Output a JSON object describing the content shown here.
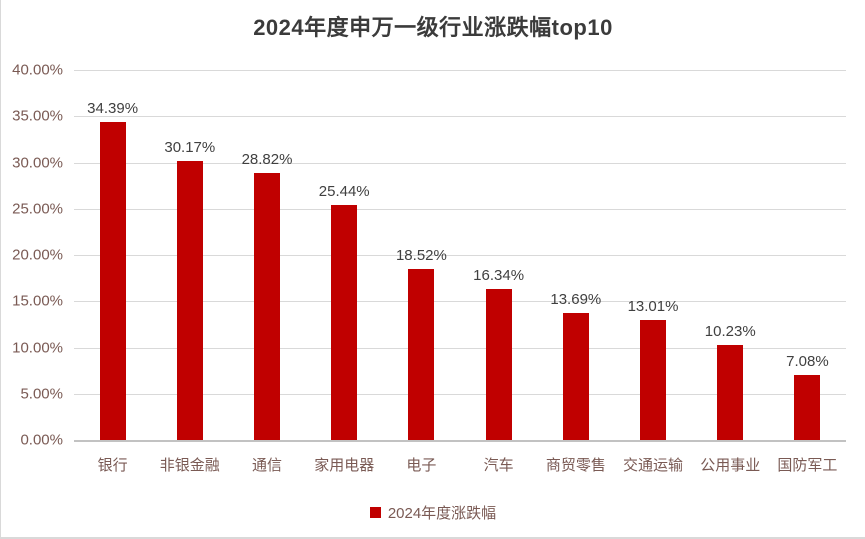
{
  "chart_data": {
    "type": "bar",
    "title": "2024年度申万一级行业涨跌幅top10",
    "categories": [
      "银行",
      "非银金融",
      "通信",
      "家用电器",
      "电子",
      "汽车",
      "商贸零售",
      "交通运输",
      "公用事业",
      "国防军工"
    ],
    "values": [
      34.39,
      30.17,
      28.82,
      25.44,
      18.52,
      16.34,
      13.69,
      13.01,
      10.23,
      7.08
    ],
    "value_labels": [
      "34.39%",
      "30.17%",
      "28.82%",
      "25.44%",
      "18.52%",
      "16.34%",
      "13.69%",
      "13.01%",
      "10.23%",
      "7.08%"
    ],
    "series_name": "2024年度涨跌幅",
    "legend": {
      "label": "2024年度涨跌幅",
      "position": "bottom"
    },
    "xlabel": "",
    "ylabel": "",
    "ylim": [
      0,
      40
    ],
    "ytick_step": 5,
    "yticks": [
      {
        "label": "40.00%",
        "value": 40
      },
      {
        "label": "35.00%",
        "value": 35
      },
      {
        "label": "30.00%",
        "value": 30
      },
      {
        "label": "25.00%",
        "value": 25
      },
      {
        "label": "20.00%",
        "value": 20
      },
      {
        "label": "15.00%",
        "value": 15
      },
      {
        "label": "10.00%",
        "value": 10
      },
      {
        "label": "5.00%",
        "value": 5
      },
      {
        "label": "0.00%",
        "value": 0
      }
    ],
    "grid": true,
    "colors": {
      "bar": "#c00000",
      "gridline": "#d9d9d9",
      "axis_line": "#c2c2c2",
      "title_text": "#3b3b3b",
      "data_label_text": "#404040",
      "tick_label_text": "#7a5a54",
      "page_edge": "#d9d9d9",
      "background": "#ffffff"
    }
  }
}
